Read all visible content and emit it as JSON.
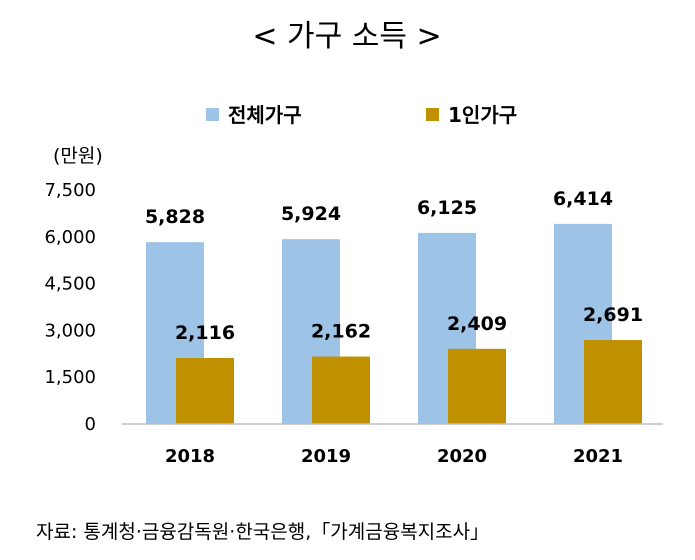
{
  "chart_data": {
    "type": "bar",
    "title": "< 가구 소득 >",
    "unit_label": "(만원)",
    "categories": [
      "2018",
      "2019",
      "2020",
      "2021"
    ],
    "series": [
      {
        "name": "전체가구",
        "color": "#9DC3E6",
        "values": [
          5828,
          5924,
          6125,
          6414
        ],
        "labels": [
          "5,828",
          "5,924",
          "6,125",
          "6,414"
        ]
      },
      {
        "name": "1인가구",
        "color": "#BF9000",
        "values": [
          2116,
          2162,
          2409,
          2691
        ],
        "labels": [
          "2,116",
          "2,162",
          "2,409",
          "2,691"
        ]
      }
    ],
    "yticks": [
      "0",
      "1,500",
      "3,000",
      "4,500",
      "6,000",
      "7,500"
    ],
    "ylim": [
      0,
      7500
    ],
    "legend_position": "top"
  },
  "source_note": "자료: 통계청·금융감독원·한국은행,「가계금융복지조사」"
}
